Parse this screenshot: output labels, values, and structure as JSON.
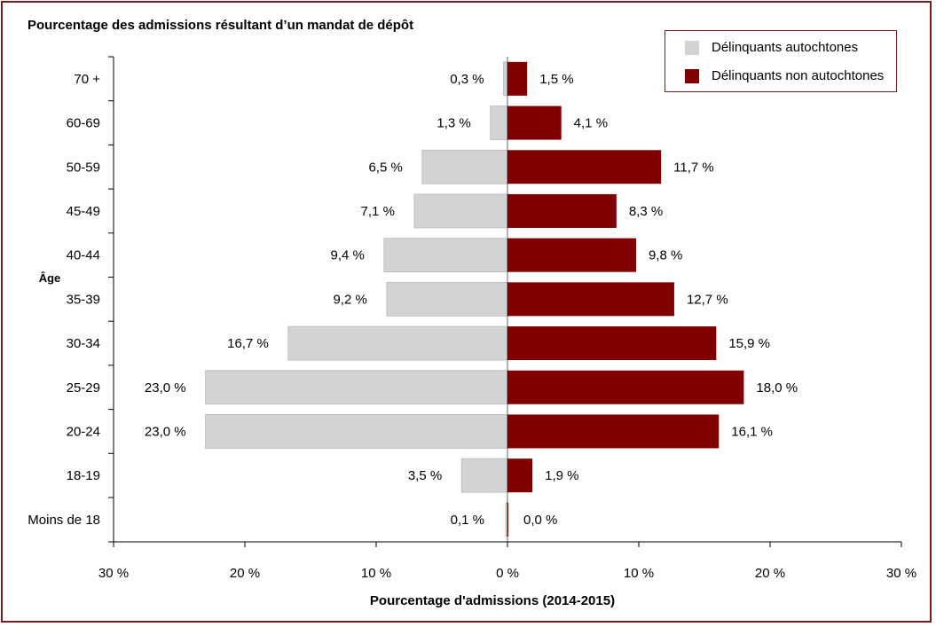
{
  "chart_data": {
    "type": "bar",
    "orientation": "horizontal-diverging",
    "title": "Pourcentage des admissions résultant d’un mandat de dépôt",
    "xlabel": "Pourcentage d'admissions (2014-2015)",
    "ylabel": "Âge",
    "xlim": [
      -30,
      30
    ],
    "x_ticks": [
      {
        "value": -30,
        "label": "30 %"
      },
      {
        "value": -20,
        "label": "20 %"
      },
      {
        "value": -10,
        "label": "10 %"
      },
      {
        "value": 0,
        "label": "0 %"
      },
      {
        "value": 10,
        "label": "10 %"
      },
      {
        "value": 20,
        "label": "20 %"
      },
      {
        "value": 30,
        "label": "30 %"
      }
    ],
    "categories": [
      "70 +",
      "60-69",
      "50-59",
      "45-49",
      "40-44",
      "35-39",
      "30-34",
      "25-29",
      "20-24",
      "18-19",
      "Moins de 18"
    ],
    "series": [
      {
        "name": "Délinquants autochtones",
        "color": "#d3d3d3",
        "side": "left",
        "values": [
          0.3,
          1.3,
          6.5,
          7.1,
          9.4,
          9.2,
          16.7,
          23.0,
          23.0,
          3.5,
          0.1
        ],
        "labels": [
          "0,3 %",
          "1,3 %",
          "6,5 %",
          "7,1 %",
          "9,4 %",
          "9,2 %",
          "16,7 %",
          "23,0 %",
          "23,0 %",
          "3,5 %",
          "0,1 %"
        ]
      },
      {
        "name": "Délinquants non autochtones",
        "color": "#800000",
        "side": "right",
        "values": [
          1.5,
          4.1,
          11.7,
          8.3,
          9.8,
          12.7,
          15.9,
          18.0,
          16.1,
          1.9,
          0.0
        ],
        "labels": [
          "1,5 %",
          "4,1 %",
          "11,7 %",
          "8,3 %",
          "9,8 %",
          "12,7 %",
          "15,9 %",
          "18,0 %",
          "16,1 %",
          "1,9 %",
          "0,0 %"
        ]
      }
    ],
    "legend_position": "top-right",
    "grid": false
  },
  "colors": {
    "frame": "#7a1a1a",
    "aboriginal": "#d3d3d3",
    "non_aboriginal": "#800000"
  }
}
